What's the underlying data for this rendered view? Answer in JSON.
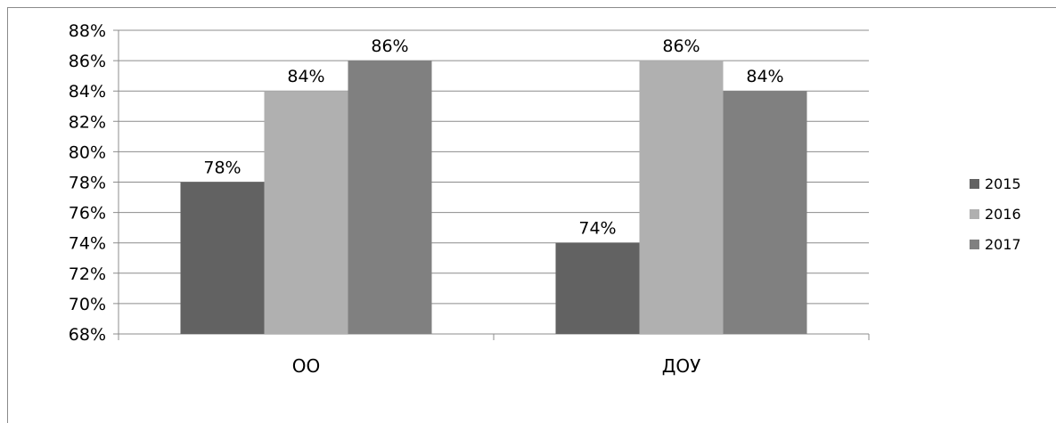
{
  "chart_data": {
    "type": "bar",
    "categories": [
      "ОО",
      "ДОУ"
    ],
    "series": [
      {
        "name": "2015",
        "values": [
          78,
          74
        ],
        "labels": [
          "78%",
          "74%"
        ],
        "color": "#626262"
      },
      {
        "name": "2016",
        "values": [
          84,
          86
        ],
        "labels": [
          "84%",
          "86%"
        ],
        "color": "#b0b0b0"
      },
      {
        "name": "2017",
        "values": [
          86,
          84
        ],
        "labels": [
          "86%",
          "84%"
        ],
        "color": "#808080"
      }
    ],
    "ylim": [
      68,
      88
    ],
    "yticks": [
      "68%",
      "70%",
      "72%",
      "74%",
      "76%",
      "78%",
      "80%",
      "82%",
      "84%",
      "86%",
      "88%"
    ],
    "ytick_values": [
      68,
      70,
      72,
      74,
      76,
      78,
      80,
      82,
      84,
      86,
      88
    ],
    "grid": true,
    "legend_position": "right",
    "title": "",
    "xlabel": "",
    "ylabel": ""
  }
}
